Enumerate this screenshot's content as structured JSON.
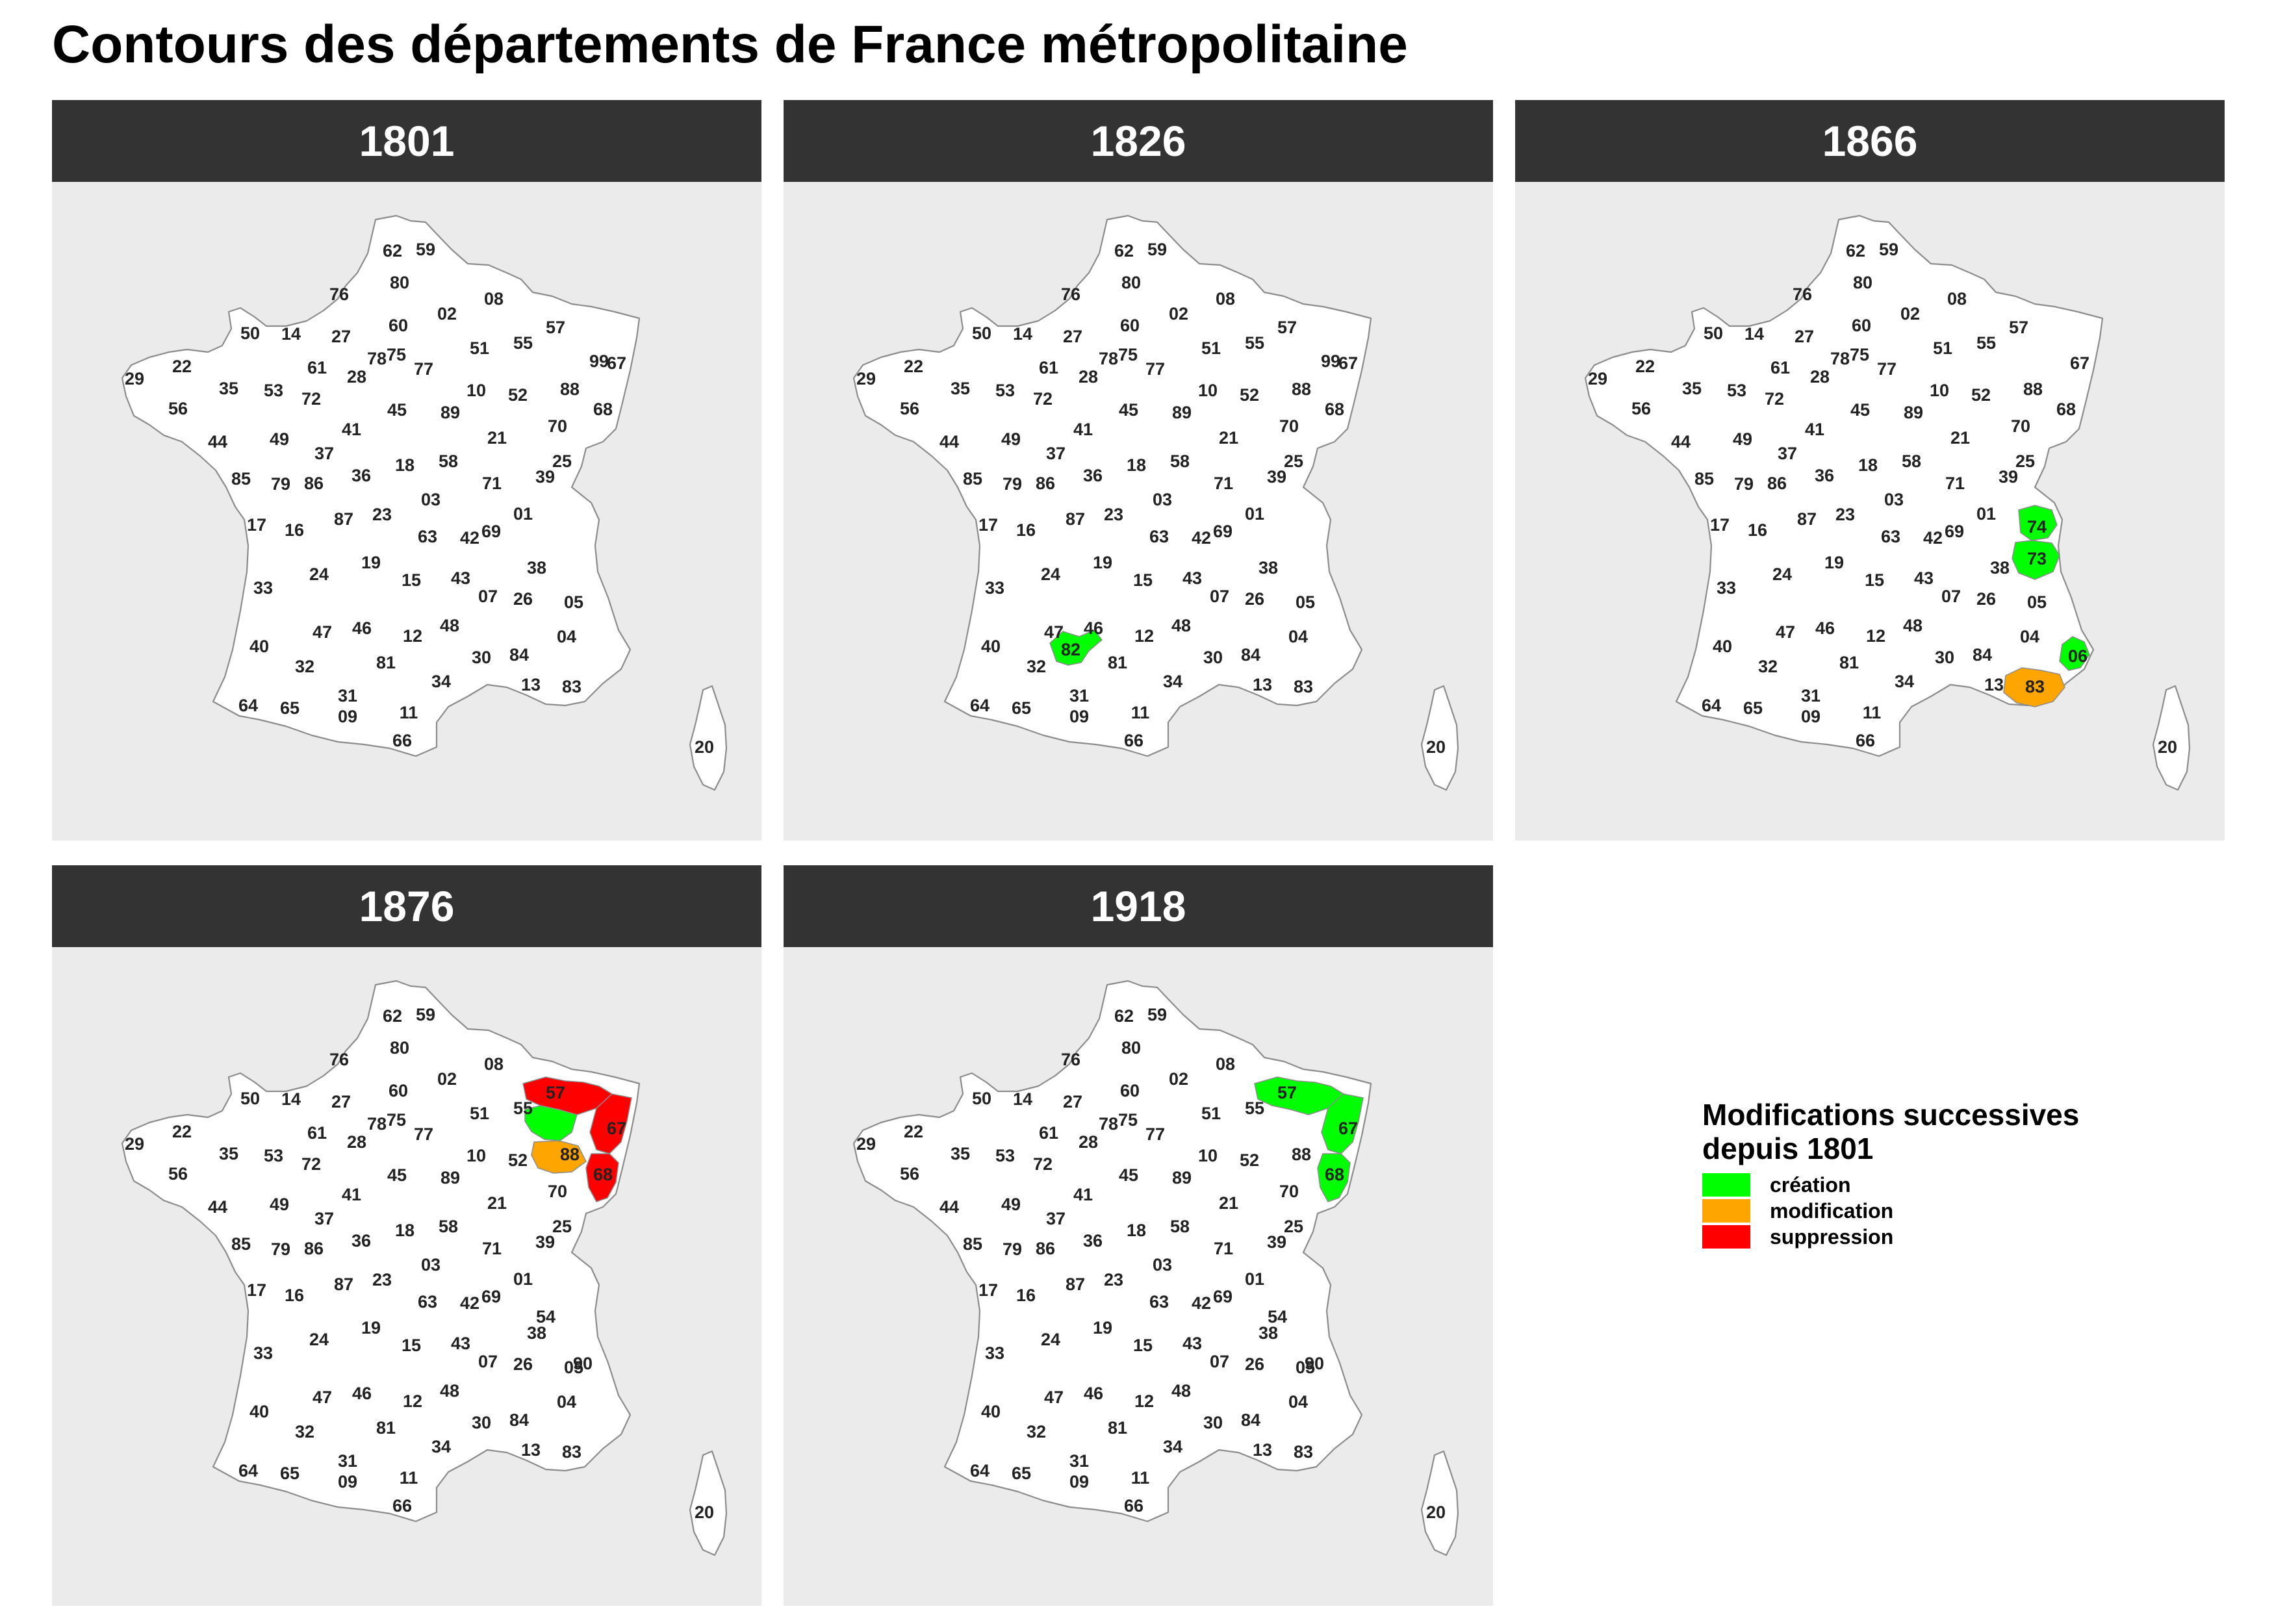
{
  "title": "Contours des départements de France métropolitaine",
  "colors": {
    "creation": "#00FF00",
    "modification": "#FFA500",
    "suppression": "#FF0000",
    "background": "#EBEBEB",
    "strip": "#333333"
  },
  "legend": {
    "title_line1": "Modifications successives",
    "title_line2": "depuis 1801",
    "items": [
      {
        "label": "création",
        "status": "creation"
      },
      {
        "label": "modification",
        "status": "modification"
      },
      {
        "label": "suppression",
        "status": "suppression"
      }
    ]
  },
  "base_departments": [
    "62",
    "59",
    "80",
    "76",
    "60",
    "02",
    "08",
    "50",
    "14",
    "27",
    "78",
    "75",
    "77",
    "51",
    "55",
    "57",
    "99",
    "67",
    "29",
    "22",
    "61",
    "28",
    "35",
    "53",
    "72",
    "56",
    "45",
    "89",
    "10",
    "52",
    "88",
    "68",
    "44",
    "49",
    "41",
    "21",
    "70",
    "37",
    "18",
    "58",
    "25",
    "85",
    "79",
    "86",
    "36",
    "71",
    "39",
    "17",
    "16",
    "87",
    "23",
    "03",
    "01",
    "63",
    "42",
    "69",
    "38",
    "24",
    "19",
    "15",
    "43",
    "07",
    "26",
    "05",
    "33",
    "47",
    "46",
    "12",
    "48",
    "04",
    "40",
    "32",
    "81",
    "30",
    "84",
    "13",
    "83",
    "64",
    "65",
    "09",
    "31",
    "11",
    "34",
    "66",
    "20"
  ],
  "panels": [
    {
      "year": "1801",
      "add": [],
      "remove": [],
      "highlight": {}
    },
    {
      "year": "1826",
      "add": [
        "82"
      ],
      "remove": [],
      "highlight": {
        "82": "creation"
      }
    },
    {
      "year": "1866",
      "add": [
        "74",
        "73",
        "06"
      ],
      "remove": [
        "99"
      ],
      "highlight": {
        "74": "creation",
        "73": "creation",
        "06": "creation",
        "83": "modification"
      }
    },
    {
      "year": "1876",
      "add": [
        "54",
        "90"
      ],
      "remove": [
        "99",
        "88"
      ],
      "highlight": {
        "57": "suppression",
        "67": "suppression",
        "68": "suppression",
        "54": "creation",
        "88": "modification"
      }
    },
    {
      "year": "1918",
      "add": [
        "54",
        "90"
      ],
      "remove": [
        "99"
      ],
      "highlight": {
        "57": "creation",
        "67": "creation",
        "68": "creation"
      }
    }
  ]
}
